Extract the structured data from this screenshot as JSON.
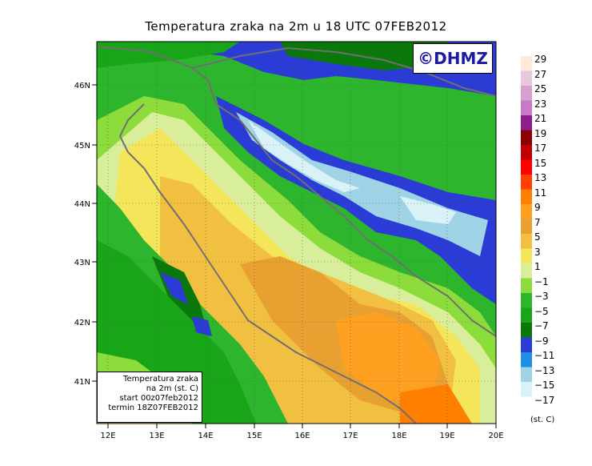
{
  "title": "Temperatura zraka na 2m u 18 UTC 07FEB2012",
  "copyright": "©DHMZ",
  "info_box": {
    "line1": "Temperatura zraka",
    "line2": "na 2m (st. C)",
    "line3": "start 00z07feb2012",
    "line4": "termin 18Z07FEB2012"
  },
  "lat_labels": [
    "46N",
    "45N",
    "44N",
    "43N",
    "42N",
    "41N"
  ],
  "lon_labels": [
    "12E",
    "13E",
    "14E",
    "15E",
    "16E",
    "17E",
    "18E",
    "19E",
    "20E"
  ],
  "colorbar": {
    "labels": [
      "29",
      "27",
      "25",
      "23",
      "21",
      "19",
      "17",
      "15",
      "13",
      "11",
      "9",
      "7",
      "5",
      "3",
      "1",
      "−1",
      "−3",
      "−5",
      "−7",
      "−9",
      "−11",
      "−13",
      "−15",
      "−17"
    ],
    "colors": [
      "#fde9d9",
      "#e7c8dc",
      "#d8a0d0",
      "#c879c8",
      "#8f1e8f",
      "#8b0000",
      "#c20000",
      "#ff0000",
      "#ff4000",
      "#ff7f00",
      "#ffa020",
      "#e8a030",
      "#f2c040",
      "#f5e55a",
      "#d9ee9a",
      "#8cdc3c",
      "#2db52d",
      "#18a518",
      "#0a780a",
      "#2b3bd6",
      "#1e8ee6",
      "#9fd4e6",
      "#d9f2f7",
      "#ffffff"
    ],
    "units": "(st. C)"
  }
}
